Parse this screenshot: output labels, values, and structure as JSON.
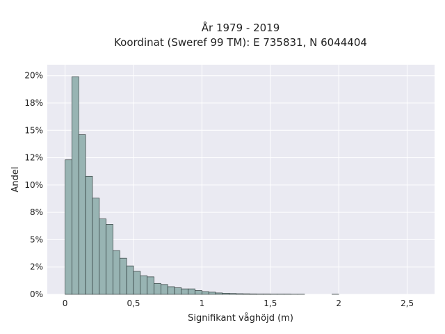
{
  "chart_data": {
    "type": "bar",
    "title": "År 1979 - 2019",
    "subtitle": "Koordinat (Sweref 99 TM): E 735831, N 6044404",
    "xlabel": "Signifikant våghöjd (m)",
    "ylabel": "Andel",
    "xlim": [
      -0.13,
      2.7
    ],
    "ylim": [
      0,
      0.21
    ],
    "x_ticks": [
      0,
      0.5,
      1,
      1.5,
      2,
      2.5
    ],
    "x_tick_labels": [
      "0",
      "0,5",
      "1",
      "1,5",
      "2",
      "2,5"
    ],
    "y_ticks": [
      0,
      0.025,
      0.05,
      0.075,
      0.1,
      0.125,
      0.15,
      0.175,
      0.2
    ],
    "y_tick_labels": [
      "0%",
      "2%",
      "5%",
      "8%",
      "10%",
      "12%",
      "15%",
      "18%",
      "20%"
    ],
    "grid": true,
    "bin_width": 0.05,
    "bin_starts": [
      0.0,
      0.05,
      0.1,
      0.15,
      0.2,
      0.25,
      0.3,
      0.35,
      0.4,
      0.45,
      0.5,
      0.55,
      0.6,
      0.65,
      0.7,
      0.75,
      0.8,
      0.85,
      0.9,
      0.95,
      1.0,
      1.05,
      1.1,
      1.15,
      1.2,
      1.25,
      1.3,
      1.35,
      1.4,
      1.45,
      1.5,
      1.55,
      1.6,
      1.65,
      1.7,
      1.95
    ],
    "values": [
      0.123,
      0.199,
      0.146,
      0.108,
      0.088,
      0.069,
      0.064,
      0.04,
      0.033,
      0.026,
      0.021,
      0.017,
      0.016,
      0.01,
      0.009,
      0.007,
      0.006,
      0.005,
      0.005,
      0.0035,
      0.0025,
      0.002,
      0.0013,
      0.001,
      0.0008,
      0.0006,
      0.0005,
      0.0004,
      0.0003,
      0.0003,
      0.0002,
      0.0002,
      0.0002,
      0.0001,
      0.0001,
      0.0001
    ],
    "colors": {
      "bar_fill": "#98b4b3",
      "bar_stroke": "#2f3b3b",
      "plot_bg": "#eaeaf2",
      "grid": "#ffffff"
    }
  }
}
